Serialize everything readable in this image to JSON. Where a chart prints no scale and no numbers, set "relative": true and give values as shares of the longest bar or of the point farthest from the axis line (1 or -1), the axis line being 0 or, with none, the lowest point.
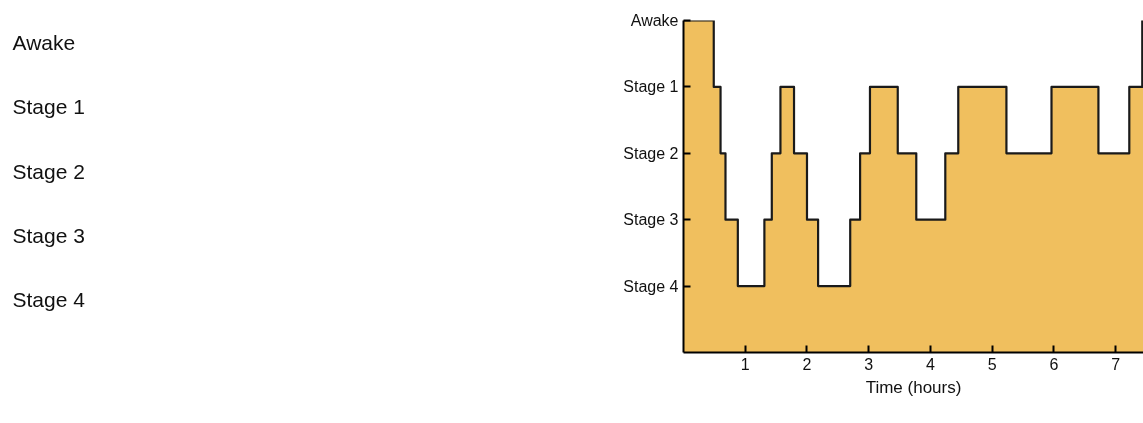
{
  "chart_data": [
    {
      "type": "other",
      "annotations": [
        "Awake",
        "Stage 1",
        "Stage 2",
        "Stage 3",
        "Stage 4"
      ]
    },
    {
      "type": "area",
      "xlabel": "Time (hours)",
      "xlim": [
        0,
        7.45
      ],
      "xticks": [
        1,
        2,
        3,
        4,
        5,
        6,
        7
      ],
      "relative": true,
      "annotations": [
        "Awake",
        "Stage 1",
        "Stage 2",
        "Stage 3",
        "Stage 4"
      ],
      "grid": false,
      "series": [
        {
          "type": "area",
          "color": "#f0bf5e",
          "x": [
            0,
            0.49,
            0.49,
            0.6,
            0.6,
            0.68,
            0.68,
            0.88,
            0.88,
            1.31,
            1.31,
            1.43,
            1.43,
            1.57,
            1.57,
            1.79,
            1.79,
            2.0,
            2.0,
            2.18,
            2.18,
            2.7,
            2.7,
            2.86,
            2.86,
            3.02,
            3.02,
            3.47,
            3.47,
            3.77,
            3.77,
            4.24,
            4.24,
            4.45,
            4.45,
            5.23,
            5.23,
            5.96,
            5.96,
            6.72,
            6.72,
            7.22,
            7.22,
            7.43,
            7.43,
            7.45
          ],
          "values": [
            1,
            1,
            0.8,
            0.8,
            0.6,
            0.6,
            0.4,
            0.4,
            0.2,
            0.2,
            0.4,
            0.4,
            0.6,
            0.6,
            0.8,
            0.8,
            0.6,
            0.6,
            0.4,
            0.4,
            0.2,
            0.2,
            0.4,
            0.4,
            0.6,
            0.6,
            0.8,
            0.8,
            0.6,
            0.6,
            0.4,
            0.4,
            0.6,
            0.6,
            0.8,
            0.8,
            0.6,
            0.6,
            0.8,
            0.8,
            0.6,
            0.6,
            0.8,
            0.8,
            1,
            1
          ]
        }
      ]
    }
  ]
}
